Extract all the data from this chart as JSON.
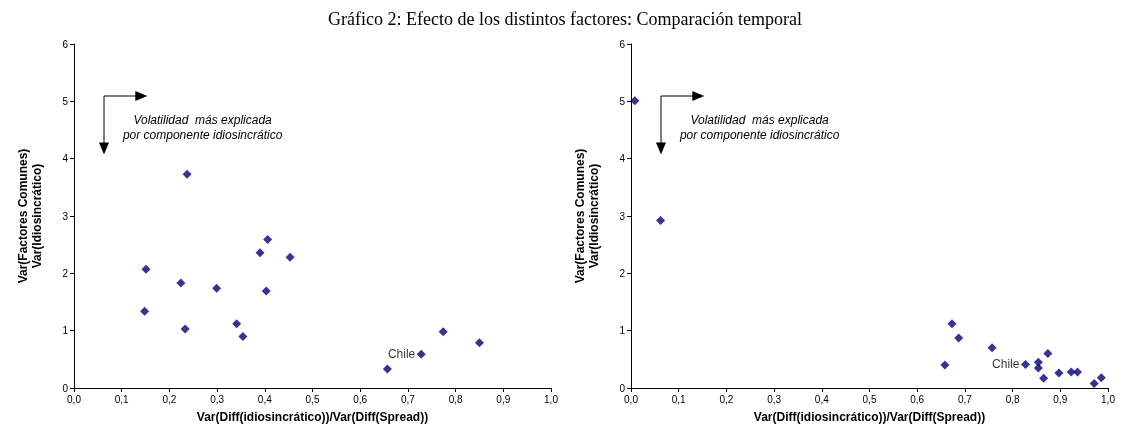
{
  "chart_data": [
    {
      "type": "scatter",
      "title": "Gráfico 2: Efecto de los distintos factores: Comparación temporal",
      "xlabel": "Var(Diff(idiosincrático))/Var(Diff(Spread))",
      "ylabel": "Var(Factores Comunes)\nVar(Idiosincrático)",
      "marker": "diamond",
      "grid": false,
      "xlim": [
        0,
        1
      ],
      "xticks": [
        {
          "value": 0,
          "label": "0,0"
        },
        {
          "value": 0.1,
          "label": "0,1"
        },
        {
          "value": 0.2,
          "label": "0,2"
        },
        {
          "value": 0.3,
          "label": "0,3"
        },
        {
          "value": 0.4,
          "label": "0,4"
        },
        {
          "value": 0.5,
          "label": "0,5"
        },
        {
          "value": 0.6,
          "label": "0,6"
        },
        {
          "value": 0.7,
          "label": "0,7"
        },
        {
          "value": 0.8,
          "label": "0,8"
        },
        {
          "value": 0.9,
          "label": "0,9"
        },
        {
          "value": 1,
          "label": "1,0"
        }
      ],
      "ylim": [
        0,
        6
      ],
      "yticks": [
        0,
        1,
        2,
        3,
        4,
        5,
        6
      ],
      "series": [
        {
          "color": "#000080",
          "x": [
            0.237,
            0.151,
            0.224,
            0.299,
            0.148,
            0.233,
            0.341,
            0.354,
            0.39,
            0.406,
            0.453,
            0.403,
            0.657,
            0.728,
            0.774,
            0.85
          ],
          "values": [
            3.73,
            2.07,
            1.83,
            1.74,
            1.34,
            1.03,
            1.12,
            0.9,
            2.36,
            2.59,
            2.28,
            1.69,
            0.33,
            0.59,
            0.98,
            0.79
          ]
        }
      ],
      "annotations": [
        "Volatilidad  más explicada\npor componente idiosincrático",
        {
          "text": "Chile",
          "x": 0.728,
          "y": 0.59
        }
      ]
    },
    {
      "type": "scatter",
      "xlabel": "Var(Diff(idiosincrático))/Var(Diff(Spread))",
      "ylabel": "Var(Factores Comunes)\nVar(Idiosincrático)",
      "marker": "diamond",
      "grid": false,
      "xlim": [
        0,
        1
      ],
      "xticks": [
        {
          "value": 0,
          "label": "0,0"
        },
        {
          "value": 0.1,
          "label": "0,1"
        },
        {
          "value": 0.2,
          "label": "0,2"
        },
        {
          "value": 0.3,
          "label": "0,3"
        },
        {
          "value": 0.4,
          "label": "0,4"
        },
        {
          "value": 0.5,
          "label": "0,5"
        },
        {
          "value": 0.6,
          "label": "0,6"
        },
        {
          "value": 0.7,
          "label": "0,7"
        },
        {
          "value": 0.8,
          "label": "0,8"
        },
        {
          "value": 0.9,
          "label": "0,9"
        },
        {
          "value": 1,
          "label": "1,0"
        }
      ],
      "ylim": [
        0,
        6
      ],
      "yticks": [
        0,
        1,
        2,
        3,
        4,
        5,
        6
      ],
      "series": [
        {
          "color": "#000080",
          "x": [
            0.008,
            0.062,
            0.673,
            0.687,
            0.658,
            0.757,
            0.827,
            0.854,
            0.854,
            0.874,
            0.865,
            0.897,
            0.923,
            0.936,
            0.971,
            0.986
          ],
          "values": [
            5.01,
            2.92,
            1.12,
            0.87,
            0.4,
            0.7,
            0.41,
            0.45,
            0.35,
            0.6,
            0.17,
            0.26,
            0.28,
            0.28,
            0.08,
            0.18
          ]
        }
      ],
      "annotations": [
        "Volatilidad  más explicada\npor componente idiosincrático",
        {
          "text": "Chile",
          "x": 0.827,
          "y": 0.41
        }
      ]
    }
  ]
}
